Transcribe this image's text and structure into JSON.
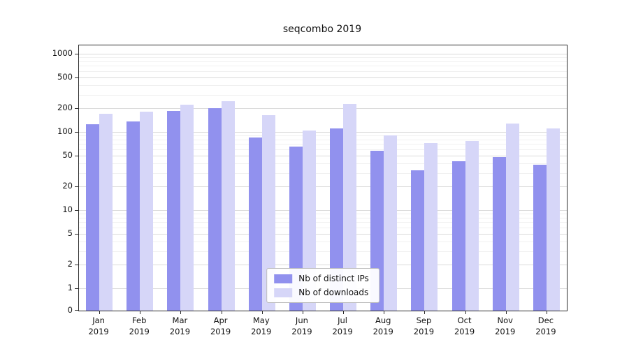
{
  "title": "seqcombo 2019",
  "legend": {
    "items": [
      {
        "label": "Nb of distinct IPs",
        "color": "#9191ee"
      },
      {
        "label": "Nb of downloads",
        "color": "#d6d6f8"
      }
    ]
  },
  "chart_data": {
    "type": "bar",
    "title": "seqcombo 2019",
    "categories": [
      "Jan 2019",
      "Feb 2019",
      "Mar 2019",
      "Apr 2019",
      "May 2019",
      "Jun 2019",
      "Jul 2019",
      "Aug 2019",
      "Sep 2019",
      "Oct 2019",
      "Nov 2019",
      "Dec 2019"
    ],
    "series": [
      {
        "name": "Nb of distinct IPs",
        "color": "#9191ee",
        "values": [
          125,
          135,
          185,
          200,
          85,
          65,
          110,
          57,
          32,
          42,
          48,
          38
        ]
      },
      {
        "name": "Nb of downloads",
        "color": "#d6d6f8",
        "values": [
          170,
          180,
          225,
          245,
          165,
          105,
          230,
          90,
          72,
          76,
          128,
          112
        ]
      }
    ],
    "yscale": "symlog",
    "yticks": [
      0,
      1,
      2,
      5,
      10,
      20,
      50,
      100,
      200,
      500,
      1000
    ],
    "ylim": [
      0,
      1000
    ],
    "grid": true,
    "legend_position": "lower center"
  }
}
